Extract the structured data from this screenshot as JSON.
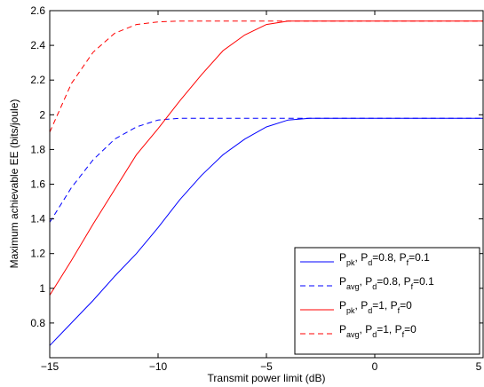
{
  "chart_data": {
    "type": "line",
    "title": "",
    "xlabel": "Transmit power limit (dB)",
    "ylabel": "Maximum achievable EE (bits/joule)",
    "xlim": [
      -15,
      5
    ],
    "ylim": [
      0.6,
      2.6
    ],
    "xticks": [
      -15,
      -10,
      -5,
      0,
      5
    ],
    "xtick_labels": [
      "−15",
      "−10",
      "−5",
      "0",
      "5"
    ],
    "yticks": [
      0.8,
      1.0,
      1.2,
      1.4,
      1.6,
      1.8,
      2.0,
      2.2,
      2.4,
      2.6
    ],
    "ytick_labels": [
      "0.8",
      "1",
      "1.2",
      "1.4",
      "1.6",
      "1.8",
      "2",
      "2.2",
      "2.4",
      "2.6"
    ],
    "grid": false,
    "legend_position": "bottom-right",
    "series": [
      {
        "legend": {
          "main": "P",
          "sub1": "pk",
          "mid": ", P",
          "sub2": "d",
          "rest1": "=0.8, P",
          "sub3": "f",
          "rest2": "=0.1"
        },
        "color": "#0000ff",
        "dash": "solid",
        "x": [
          -15,
          -14,
          -13,
          -12,
          -11,
          -10,
          -9,
          -8,
          -7,
          -6,
          -5,
          -4,
          -3,
          -2,
          -1,
          0,
          1,
          2,
          3,
          4,
          5
        ],
        "y": [
          0.67,
          0.8,
          0.93,
          1.07,
          1.2,
          1.35,
          1.51,
          1.65,
          1.77,
          1.86,
          1.93,
          1.97,
          1.98,
          1.98,
          1.98,
          1.98,
          1.98,
          1.98,
          1.98,
          1.98,
          1.98
        ]
      },
      {
        "legend": {
          "main": "P",
          "sub1": "avg",
          "mid": ", P",
          "sub2": "d",
          "rest1": "=0.8, P",
          "sub3": "f",
          "rest2": "=0.1"
        },
        "color": "#0000ff",
        "dash": "dashed",
        "x": [
          -15,
          -14,
          -13,
          -12,
          -11,
          -10,
          -9,
          -8,
          -7,
          -6,
          -5,
          -4,
          -3,
          -2,
          -1,
          0,
          1,
          2,
          3,
          4,
          5
        ],
        "y": [
          1.38,
          1.58,
          1.74,
          1.86,
          1.93,
          1.97,
          1.98,
          1.98,
          1.98,
          1.98,
          1.98,
          1.98,
          1.98,
          1.98,
          1.98,
          1.98,
          1.98,
          1.98,
          1.98,
          1.98,
          1.98
        ]
      },
      {
        "legend": {
          "main": "P",
          "sub1": "pk",
          "mid": ", P",
          "sub2": "d",
          "rest1": "=1, P",
          "sub3": "f",
          "rest2": "=0"
        },
        "color": "#ff0000",
        "dash": "solid",
        "x": [
          -15,
          -14,
          -13,
          -12,
          -11,
          -10,
          -9,
          -8,
          -7,
          -6,
          -5,
          -4,
          -3,
          -2,
          -1,
          0,
          1,
          2,
          3,
          4,
          5
        ],
        "y": [
          0.96,
          1.16,
          1.37,
          1.57,
          1.77,
          1.92,
          2.08,
          2.23,
          2.37,
          2.46,
          2.52,
          2.54,
          2.54,
          2.54,
          2.54,
          2.54,
          2.54,
          2.54,
          2.54,
          2.54,
          2.54
        ]
      },
      {
        "legend": {
          "main": "P",
          "sub1": "avg",
          "mid": ", P",
          "sub2": "d",
          "rest1": "=1, P",
          "sub3": "f",
          "rest2": "=0"
        },
        "color": "#ff0000",
        "dash": "dashed",
        "x": [
          -15,
          -14,
          -13,
          -12,
          -11,
          -10,
          -9,
          -8,
          -7,
          -6,
          -5,
          -4,
          -3,
          -2,
          -1,
          0,
          1,
          2,
          3,
          4,
          5
        ],
        "y": [
          1.9,
          2.18,
          2.36,
          2.47,
          2.52,
          2.535,
          2.54,
          2.54,
          2.54,
          2.54,
          2.54,
          2.54,
          2.54,
          2.54,
          2.54,
          2.54,
          2.54,
          2.54,
          2.54,
          2.54,
          2.54
        ]
      }
    ]
  }
}
